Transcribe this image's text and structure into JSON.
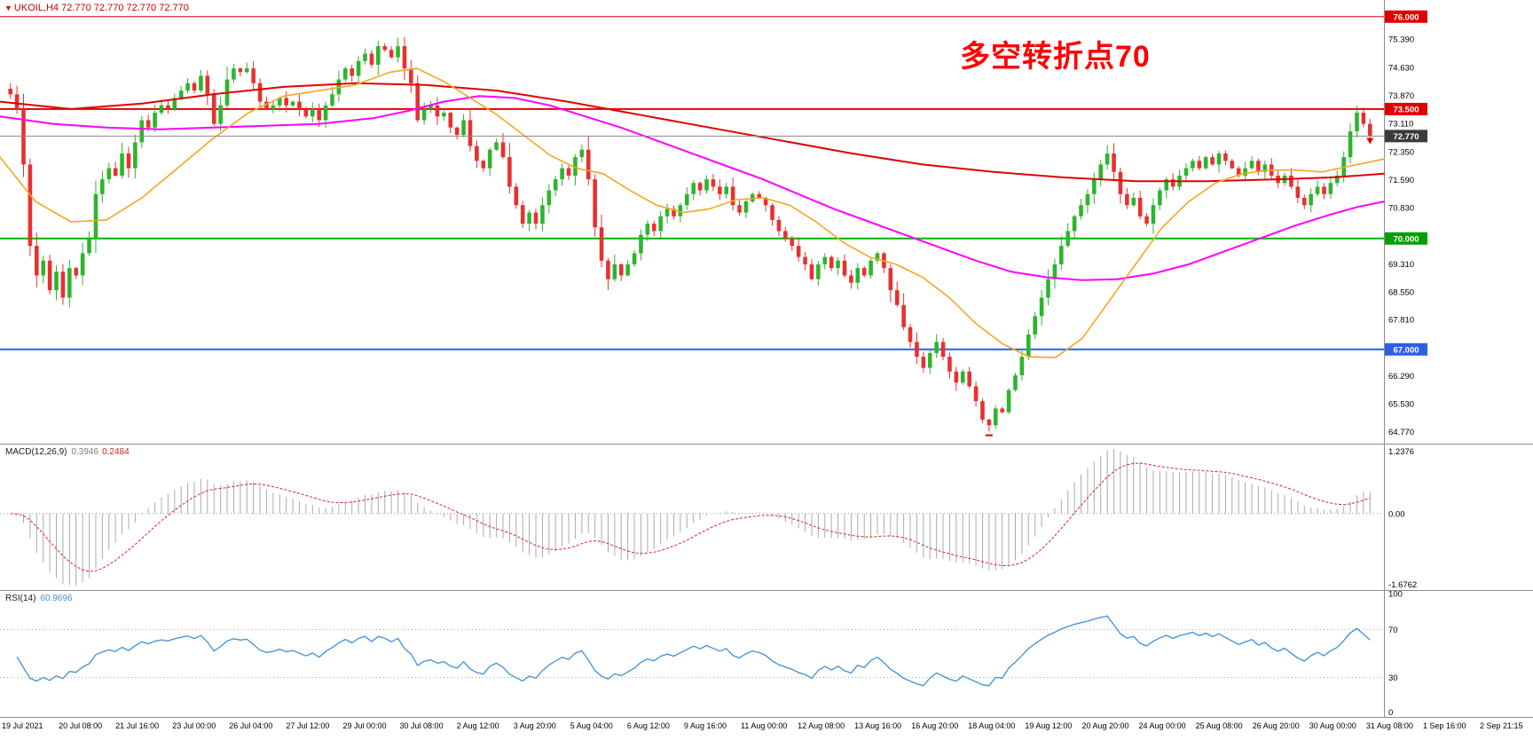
{
  "main": {
    "symbol_line": "UKOIL,H4 72.770 72.770 72.770 72.770",
    "annotation": "多空转折点70",
    "annotation_color": "#ff0000"
  },
  "icons": {
    "chart_shift": "▼"
  },
  "time_axis": [
    "19 Jul 2021",
    "20 Jul 08:00",
    "21 Jul 16:00",
    "23 Jul 00:00",
    "26 Jul 04:00",
    "27 Jul 12:00",
    "29 Jul 00:00",
    "30 Jul 08:00",
    "2 Aug 12:00",
    "3 Aug 20:00",
    "5 Aug 04:00",
    "6 Aug 12:00",
    "9 Aug 16:00",
    "11 Aug 00:00",
    "12 Aug 08:00",
    "13 Aug 16:00",
    "16 Aug 20:00",
    "18 Aug 04:00",
    "19 Aug 12:00",
    "20 Aug 20:00",
    "24 Aug 00:00",
    "25 Aug 08:00",
    "26 Aug 20:00",
    "30 Aug 00:00",
    "31 Aug 08:00",
    "1 Sep 16:00",
    "2 Sep 21:15"
  ],
  "chart_data": [
    {
      "type": "candlestick",
      "symbol": "UKOIL",
      "timeframe": "H4",
      "current_price": "72.770",
      "ylim": [
        64.45,
        76.45
      ],
      "y_ticks": [
        "75.390",
        "74.630",
        "73.870",
        "73.110",
        "72.350",
        "71.590",
        "70.830",
        "69.310",
        "68.550",
        "67.810",
        "66.290",
        "65.530",
        "64.770"
      ],
      "levels": [
        {
          "price": 76.0,
          "label": "76.000",
          "color": "#e00000",
          "width": 1,
          "badge": "#e00000",
          "above": false
        },
        {
          "price": 73.5,
          "label": "73.500",
          "color": "#e00000",
          "width": 2,
          "badge": "#e00000",
          "above": false
        },
        {
          "price": 72.77,
          "label": "72.770",
          "color": "#8a8a8a",
          "width": 1,
          "badge": "#3c3c3c",
          "above": true
        },
        {
          "price": 70.0,
          "label": "70.000",
          "color": "#00b300",
          "width": 2,
          "badge": "#00a000",
          "above": false
        },
        {
          "price": 67.0,
          "label": "67.000",
          "color": "#2e5fe8",
          "width": 2,
          "badge": "#2e5fe8",
          "above": false
        }
      ],
      "colors": {
        "up": "#2db52d",
        "down": "#e83030"
      },
      "closes": [
        73.9,
        73.5,
        72.0,
        69.8,
        69.0,
        69.4,
        68.6,
        69.1,
        68.4,
        69.2,
        69.0,
        69.6,
        70.0,
        71.2,
        71.6,
        71.9,
        71.7,
        72.3,
        71.9,
        72.6,
        73.2,
        73.0,
        73.4,
        73.6,
        73.5,
        73.8,
        74.0,
        74.2,
        74.0,
        74.4,
        73.9,
        73.1,
        73.6,
        74.3,
        74.6,
        74.5,
        74.6,
        74.2,
        73.7,
        73.5,
        73.6,
        73.8,
        73.6,
        73.7,
        73.5,
        73.3,
        73.5,
        73.2,
        73.6,
        73.9,
        74.3,
        74.6,
        74.4,
        74.8,
        75.0,
        74.7,
        75.2,
        75.1,
        74.9,
        75.2,
        74.6,
        74.2,
        73.2,
        73.5,
        73.6,
        73.3,
        73.4,
        73.0,
        72.8,
        73.2,
        72.5,
        72.1,
        71.9,
        72.4,
        72.6,
        72.2,
        71.4,
        70.9,
        70.4,
        70.7,
        70.4,
        70.9,
        71.3,
        71.6,
        71.9,
        71.7,
        72.2,
        72.4,
        71.6,
        70.3,
        69.4,
        68.9,
        69.3,
        69.0,
        69.3,
        69.6,
        70.1,
        70.4,
        70.2,
        70.6,
        70.8,
        70.6,
        70.9,
        71.2,
        71.5,
        71.3,
        71.6,
        71.4,
        71.2,
        71.4,
        70.9,
        70.7,
        71.0,
        71.2,
        71.1,
        70.9,
        70.5,
        70.2,
        70.0,
        69.8,
        69.5,
        69.3,
        68.9,
        69.3,
        69.5,
        69.2,
        69.4,
        69.0,
        68.8,
        69.2,
        69.0,
        69.4,
        69.6,
        69.2,
        68.6,
        68.2,
        67.6,
        67.2,
        66.8,
        66.5,
        66.9,
        67.2,
        66.8,
        66.4,
        66.1,
        66.4,
        66.0,
        65.6,
        65.1,
        64.95,
        65.4,
        65.3,
        65.9,
        66.3,
        66.8,
        67.4,
        67.9,
        68.4,
        68.9,
        69.3,
        69.8,
        70.2,
        70.6,
        70.9,
        71.2,
        71.6,
        72.0,
        72.3,
        71.8,
        71.2,
        70.9,
        71.1,
        70.6,
        70.4,
        70.9,
        71.3,
        71.6,
        71.4,
        71.7,
        71.9,
        72.1,
        71.9,
        72.2,
        72.0,
        72.3,
        72.1,
        71.9,
        71.7,
        71.9,
        72.1,
        71.8,
        72.0,
        71.7,
        71.5,
        71.7,
        71.4,
        71.1,
        70.9,
        71.2,
        71.4,
        71.2,
        71.5,
        71.7,
        72.2,
        72.9,
        73.4,
        73.1,
        72.77
      ],
      "moving_averages": [
        {
          "name": "ma-red",
          "color": "#e00000",
          "width": 2,
          "points": [
            [
              0,
              73.7
            ],
            [
              80,
              73.5
            ],
            [
              160,
              73.65
            ],
            [
              240,
              73.9
            ],
            [
              320,
              74.1
            ],
            [
              400,
              74.2
            ],
            [
              480,
              74.15
            ],
            [
              560,
              74.0
            ],
            [
              640,
              73.7
            ],
            [
              720,
              73.35
            ],
            [
              800,
              73.0
            ],
            [
              880,
              72.65
            ],
            [
              960,
              72.3
            ],
            [
              1040,
              72.0
            ],
            [
              1120,
              71.8
            ],
            [
              1200,
              71.65
            ],
            [
              1280,
              71.55
            ],
            [
              1360,
              71.55
            ],
            [
              1440,
              71.6
            ],
            [
              1500,
              71.65
            ],
            [
              1560,
              71.75
            ]
          ]
        },
        {
          "name": "ma-magenta",
          "color": "#ff00ff",
          "width": 2,
          "points": [
            [
              0,
              73.3
            ],
            [
              60,
              73.1
            ],
            [
              120,
              73.0
            ],
            [
              180,
              72.95
            ],
            [
              240,
              73.0
            ],
            [
              300,
              73.05
            ],
            [
              360,
              73.1
            ],
            [
              420,
              73.25
            ],
            [
              460,
              73.45
            ],
            [
              500,
              73.7
            ],
            [
              540,
              73.85
            ],
            [
              580,
              73.8
            ],
            [
              620,
              73.6
            ],
            [
              660,
              73.3
            ],
            [
              700,
              73.0
            ],
            [
              740,
              72.65
            ],
            [
              780,
              72.3
            ],
            [
              820,
              71.95
            ],
            [
              860,
              71.6
            ],
            [
              900,
              71.2
            ],
            [
              940,
              70.8
            ],
            [
              980,
              70.45
            ],
            [
              1020,
              70.1
            ],
            [
              1060,
              69.75
            ],
            [
              1100,
              69.4
            ],
            [
              1140,
              69.1
            ],
            [
              1180,
              68.95
            ],
            [
              1220,
              68.87
            ],
            [
              1260,
              68.9
            ],
            [
              1300,
              69.05
            ],
            [
              1340,
              69.3
            ],
            [
              1380,
              69.65
            ],
            [
              1420,
              70.0
            ],
            [
              1460,
              70.35
            ],
            [
              1500,
              70.65
            ],
            [
              1530,
              70.85
            ],
            [
              1560,
              71.0
            ]
          ]
        },
        {
          "name": "ma-orange",
          "color": "#f5a623",
          "width": 1.6,
          "points": [
            [
              0,
              72.2
            ],
            [
              40,
              71.0
            ],
            [
              80,
              70.45
            ],
            [
              120,
              70.5
            ],
            [
              160,
              71.1
            ],
            [
              200,
              71.9
            ],
            [
              240,
              72.7
            ],
            [
              280,
              73.4
            ],
            [
              320,
              73.85
            ],
            [
              360,
              74.0
            ],
            [
              400,
              74.15
            ],
            [
              440,
              74.5
            ],
            [
              470,
              74.6
            ],
            [
              500,
              74.25
            ],
            [
              530,
              73.8
            ],
            [
              560,
              73.35
            ],
            [
              590,
              72.8
            ],
            [
              620,
              72.25
            ],
            [
              650,
              71.9
            ],
            [
              680,
              71.75
            ],
            [
              710,
              71.3
            ],
            [
              740,
              70.9
            ],
            [
              770,
              70.7
            ],
            [
              800,
              70.8
            ],
            [
              830,
              71.05
            ],
            [
              860,
              71.1
            ],
            [
              890,
              70.9
            ],
            [
              920,
              70.45
            ],
            [
              950,
              69.9
            ],
            [
              980,
              69.5
            ],
            [
              1010,
              69.3
            ],
            [
              1040,
              68.95
            ],
            [
              1070,
              68.4
            ],
            [
              1100,
              67.7
            ],
            [
              1130,
              67.15
            ],
            [
              1160,
              66.8
            ],
            [
              1190,
              66.78
            ],
            [
              1220,
              67.3
            ],
            [
              1250,
              68.3
            ],
            [
              1280,
              69.3
            ],
            [
              1310,
              70.3
            ],
            [
              1340,
              71.0
            ],
            [
              1370,
              71.5
            ],
            [
              1400,
              71.75
            ],
            [
              1430,
              71.85
            ],
            [
              1460,
              71.85
            ],
            [
              1490,
              71.8
            ],
            [
              1520,
              71.95
            ],
            [
              1560,
              72.15
            ]
          ]
        }
      ],
      "markers": [
        {
          "type": "arrow-down",
          "index": 207,
          "price": 72.55,
          "color": "#e00000"
        },
        {
          "type": "dash",
          "index": 149,
          "price": 64.7,
          "color": "#e00000"
        }
      ]
    },
    {
      "type": "macd",
      "label": "MACD(12,26,9)",
      "value_main": "0.3946",
      "value_signal": "0.2484",
      "params": {
        "fast": 12,
        "slow": 26,
        "signal": 9
      },
      "scale_max": "1.2376",
      "scale_zero": "0.00",
      "scale_min": "-1.6762",
      "histogram_color": "#ababab",
      "signal_color": "#dd2222"
    },
    {
      "type": "rsi",
      "label": "RSI(14)",
      "value": "60.9696",
      "period": 14,
      "levels": [
        70,
        30
      ],
      "scale": [
        "100",
        "70",
        "30",
        "0"
      ],
      "line_color": "#3e8fd8"
    }
  ]
}
